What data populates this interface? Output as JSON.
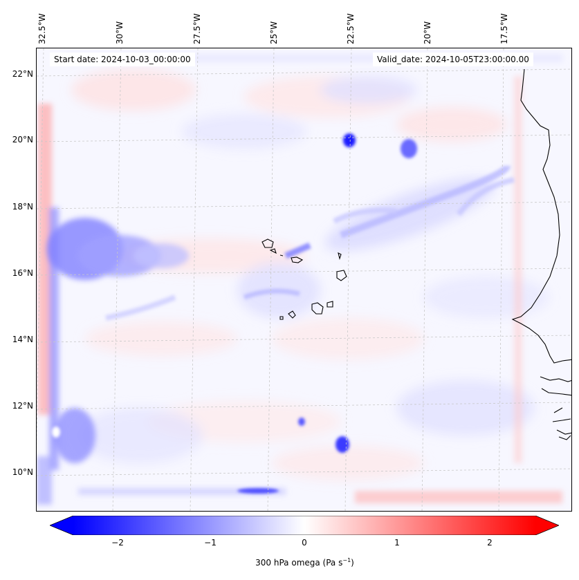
{
  "map": {
    "title_left": "Start date: 2024-10-03_00:00:00",
    "title_right": "Valid_date: 2024-10-05T23:00:00.00",
    "longitude_labels": [
      "32.5°W",
      "30°W",
      "27.5°W",
      "25°W",
      "22.5°W",
      "20°W",
      "17.5°W"
    ],
    "latitude_labels": [
      "22°N",
      "20°N",
      "18°N",
      "16°N",
      "14°N",
      "12°N",
      "10°N"
    ],
    "variable": "300 hPa omega",
    "units": "Pa s",
    "units_exponent": "−1"
  },
  "colorbar": {
    "ticks": [
      "−2",
      "−1",
      "0",
      "1",
      "2"
    ],
    "range": [
      -2.6,
      2.6
    ],
    "min_color": "#0000ff",
    "mid_color": "#ffffff",
    "max_color": "#ff0000"
  },
  "colors": {
    "ascent": "#0000ff",
    "descent": "#ff0000",
    "coastline": "#000000",
    "gridline": "#c8c8c8"
  }
}
